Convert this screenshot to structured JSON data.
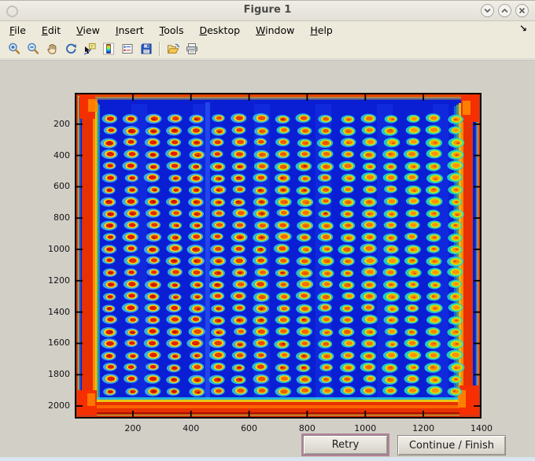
{
  "window": {
    "title": "Figure 1",
    "controls": [
      {
        "name": "minimize-button",
        "icon": "chevron-down-icon"
      },
      {
        "name": "maximize-button",
        "icon": "chevron-up-icon"
      },
      {
        "name": "close-button",
        "icon": "close-x-icon"
      }
    ]
  },
  "menubar": {
    "items": [
      {
        "label": "File"
      },
      {
        "label": "Edit"
      },
      {
        "label": "View"
      },
      {
        "label": "Insert"
      },
      {
        "label": "Tools"
      },
      {
        "label": "Desktop"
      },
      {
        "label": "Window"
      },
      {
        "label": "Help"
      }
    ],
    "overflow_arrow": "↘"
  },
  "toolbar": {
    "groups": [
      {
        "icons": [
          "zoom-in",
          "zoom-out",
          "pan",
          "rotate-3d",
          "data-cursor",
          "insert-colorbar",
          "insert-legend",
          "save-figure"
        ]
      },
      {
        "icons": [
          "open-file",
          "print-figure"
        ]
      }
    ]
  },
  "chart_data": {
    "type": "heatmap",
    "title": "",
    "xlabel": "",
    "ylabel": "",
    "colormap": "jet",
    "x_range": [
      0,
      1400
    ],
    "y_range": [
      0,
      2080
    ],
    "x_ticks": [
      200,
      400,
      600,
      800,
      1000,
      1200,
      1400
    ],
    "y_ticks": [
      200,
      400,
      600,
      800,
      1000,
      1200,
      1400,
      1600,
      1800,
      2000
    ],
    "grid": {
      "rows": 24,
      "cols": 17
    },
    "description": "Jet-colormap intensity image of a microarray plate: 17x24 grid of hot elliptical spots (red/orange cores, yellow rings, cyan halos) on a cold deep-blue plate whose borders glow red/orange/yellow; spot cores run hotter (red) on the left and cooler (orange) toward the right.",
    "palette": {
      "background_blue": "#0a1fd4",
      "band_blue": "#2244f0",
      "halo_left": "#45b4ec",
      "halo_right": "#22dfc4",
      "ring_left": "#ffd400",
      "ring_right": "#c8e800",
      "core_left": "#dd1c00",
      "core_right": "#ff9400",
      "core_dark": "#8c0e00",
      "edge_dark_red": "#7a0f00",
      "edge_red": "#e83000",
      "edge_bright_red": "#f52f00",
      "edge_orange": "#ff8800",
      "edge_yellow": "#ffd800",
      "edge_green": "#86ec2a",
      "edge_cyan": "#28d8e0"
    }
  },
  "action_buttons": {
    "retry": "Retry",
    "continue": "Continue / Finish"
  }
}
